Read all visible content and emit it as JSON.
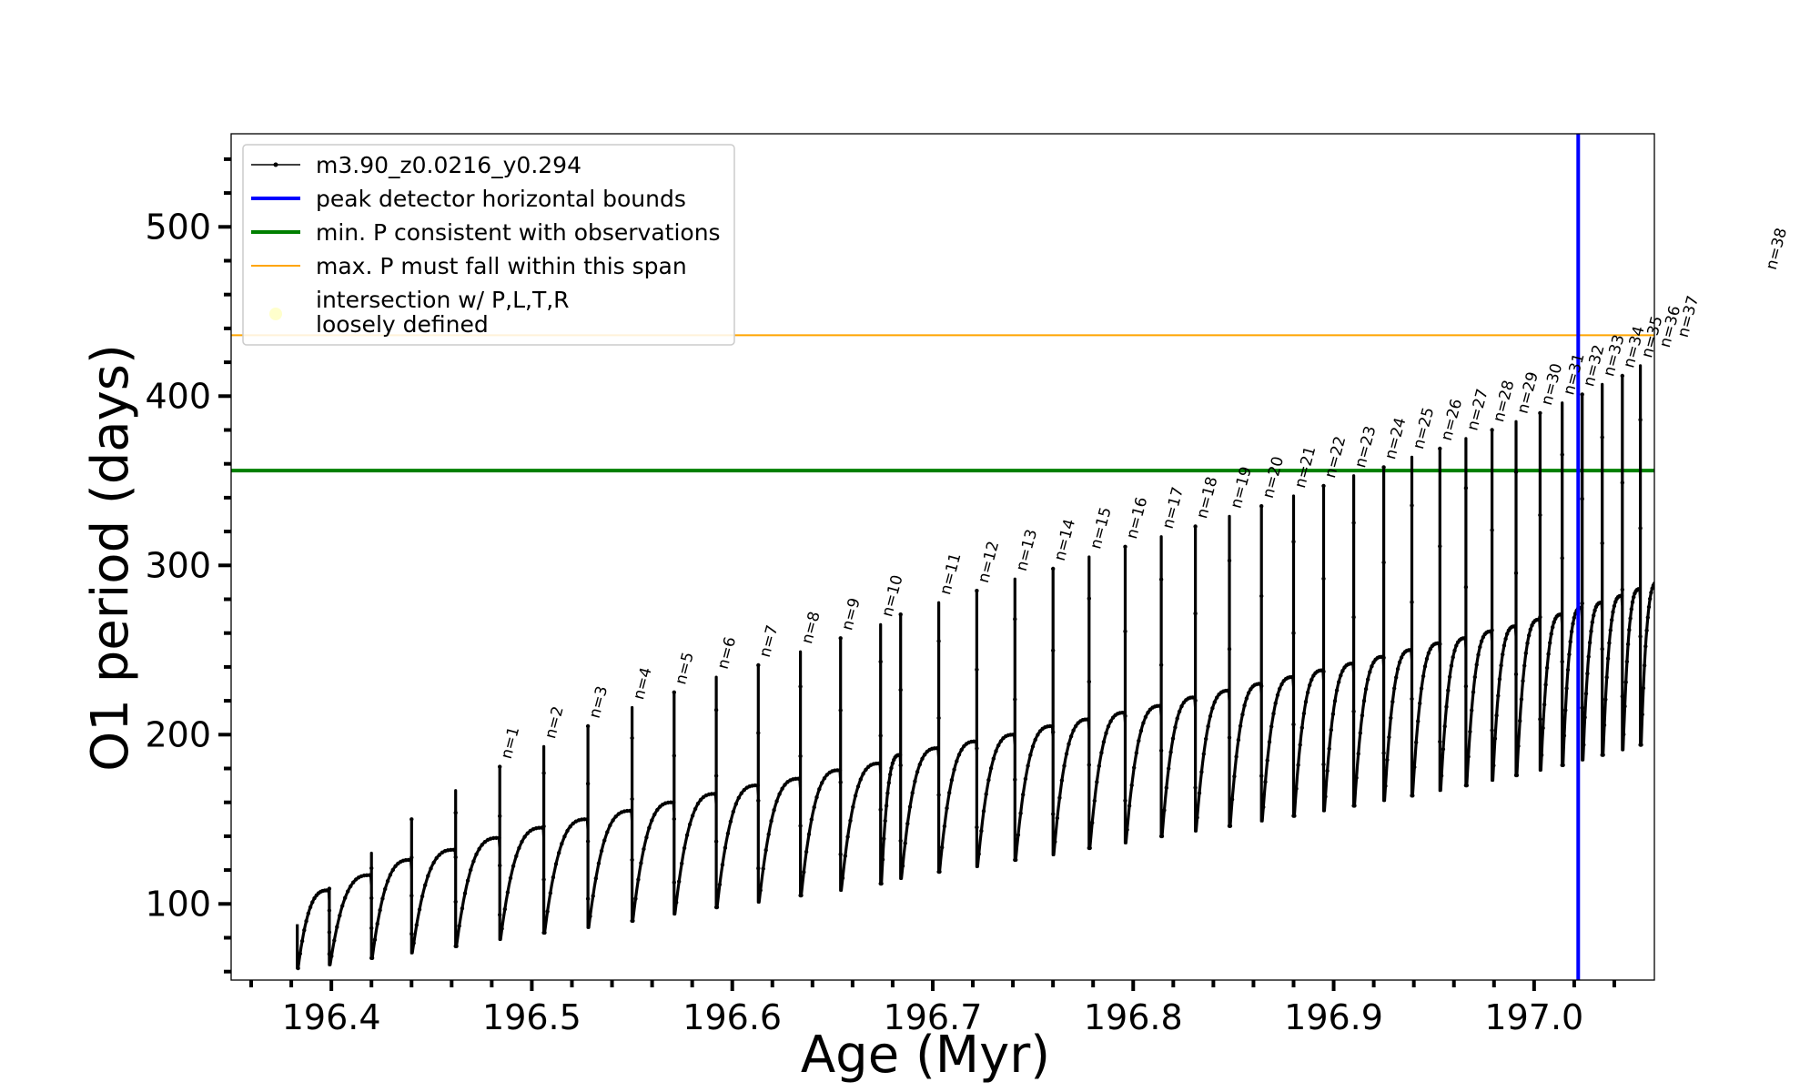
{
  "chart_data": {
    "type": "line",
    "xlabel": "Age (Myr)",
    "ylabel": "O1 period (days)",
    "xlim": [
      196.35,
      197.06
    ],
    "ylim": [
      55,
      555
    ],
    "xticks": [
      196.4,
      196.5,
      196.6,
      196.7,
      196.8,
      196.9,
      197.0
    ],
    "xtick_labels": [
      "196.4",
      "196.5",
      "196.6",
      "196.7",
      "196.8",
      "196.9",
      "197.0"
    ],
    "yticks": [
      100,
      200,
      300,
      400,
      500
    ],
    "ytick_labels": [
      "100",
      "200",
      "300",
      "400",
      "500"
    ],
    "grid": false,
    "legend_position": "top-left",
    "series": [
      {
        "name": "m3.90_z0.0216_y0.294",
        "color": "#000000",
        "style": "line-with-point-markers",
        "pulses": [
          {
            "age": 196.383,
            "min": 62,
            "max": 108,
            "spike": 88
          },
          {
            "age": 196.399,
            "min": 64,
            "max": 117,
            "spike": 109
          },
          {
            "age": 196.42,
            "min": 68,
            "max": 126,
            "spike": 130
          },
          {
            "age": 196.44,
            "min": 71,
            "max": 132,
            "spike": 150
          },
          {
            "age": 196.462,
            "min": 75,
            "max": 139,
            "spike": 167
          },
          {
            "age": 196.484,
            "min": 79,
            "max": 145,
            "spike": 181
          },
          {
            "age": 196.506,
            "min": 83,
            "max": 150,
            "spike": 193
          },
          {
            "age": 196.528,
            "min": 86,
            "max": 155,
            "spike": 205
          },
          {
            "age": 196.55,
            "min": 90,
            "max": 160,
            "spike": 216
          },
          {
            "age": 196.571,
            "min": 94,
            "max": 165,
            "spike": 225
          },
          {
            "age": 196.592,
            "min": 98,
            "max": 170,
            "spike": 234
          },
          {
            "age": 196.613,
            "min": 101,
            "max": 174,
            "spike": 241
          },
          {
            "age": 196.634,
            "min": 105,
            "max": 179,
            "spike": 249
          },
          {
            "age": 196.654,
            "min": 108,
            "max": 183,
            "spike": 257
          },
          {
            "age": 196.674,
            "min": 112,
            "max": 188,
            "spike": 265
          },
          {
            "age": 196.684,
            "min": 115,
            "max": 192,
            "spike": 271
          },
          {
            "age": 196.703,
            "min": 119,
            "max": 196,
            "spike": 278
          },
          {
            "age": 196.722,
            "min": 122,
            "max": 200,
            "spike": 285
          },
          {
            "age": 196.741,
            "min": 126,
            "max": 205,
            "spike": 292
          },
          {
            "age": 196.76,
            "min": 129,
            "max": 209,
            "spike": 298
          },
          {
            "age": 196.778,
            "min": 133,
            "max": 213,
            "spike": 305
          },
          {
            "age": 196.796,
            "min": 136,
            "max": 217,
            "spike": 311
          },
          {
            "age": 196.814,
            "min": 140,
            "max": 222,
            "spike": 317
          },
          {
            "age": 196.831,
            "min": 143,
            "max": 226,
            "spike": 323
          },
          {
            "age": 196.848,
            "min": 146,
            "max": 230,
            "spike": 329
          },
          {
            "age": 196.864,
            "min": 149,
            "max": 234,
            "spike": 335
          },
          {
            "age": 196.88,
            "min": 152,
            "max": 238,
            "spike": 341
          },
          {
            "age": 196.895,
            "min": 155,
            "max": 242,
            "spike": 347
          },
          {
            "age": 196.91,
            "min": 158,
            "max": 246,
            "spike": 353
          },
          {
            "age": 196.925,
            "min": 161,
            "max": 250,
            "spike": 358
          },
          {
            "age": 196.939,
            "min": 164,
            "max": 254,
            "spike": 364
          },
          {
            "age": 196.953,
            "min": 167,
            "max": 257,
            "spike": 369
          },
          {
            "age": 196.966,
            "min": 170,
            "max": 261,
            "spike": 375
          },
          {
            "age": 196.979,
            "min": 173,
            "max": 264,
            "spike": 380
          },
          {
            "age": 196.991,
            "min": 176,
            "max": 268,
            "spike": 385
          },
          {
            "age": 197.003,
            "min": 179,
            "max": 271,
            "spike": 390
          },
          {
            "age": 197.014,
            "min": 182,
            "max": 275,
            "spike": 396
          },
          {
            "age": 197.024,
            "min": 185,
            "max": 278,
            "spike": 401
          },
          {
            "age": 197.034,
            "min": 188,
            "max": 282,
            "spike": 407
          },
          {
            "age": 197.044,
            "min": 191,
            "max": 286,
            "spike": 412
          },
          {
            "age": 197.053,
            "min": 194,
            "max": 290,
            "spike": 418
          },
          {
            "age": 197.062,
            "min": 197,
            "max": 294,
            "spike": 424
          },
          {
            "age": 197.071,
            "min": 200,
            "max": 298,
            "spike": 430
          },
          {
            "age": 197.079,
            "min": 203,
            "max": 302,
            "spike": 436
          },
          {
            "age": 197.087,
            "min": 207,
            "max": 306,
            "spike": 442
          },
          {
            "age": 197.094,
            "min": 210,
            "max": 310,
            "spike": 448
          },
          {
            "age": 197.101,
            "min": 214,
            "max": 314,
            "spike": 455
          },
          {
            "age": 197.108,
            "min": 220,
            "max": 318,
            "spike": 462
          },
          {
            "age": 197.115,
            "min": 276,
            "max": 322,
            "spike": 470
          }
        ]
      },
      {
        "name": "peak detector horizontal bounds",
        "color": "#0000ff",
        "type": "vline",
        "x": 197.022
      },
      {
        "name": "min. P consistent with observations",
        "color": "#007f00",
        "type": "hline",
        "y": 356
      },
      {
        "name": "max. P must fall within this span",
        "color": "#ffa500",
        "type": "hline",
        "y": 436
      },
      {
        "name": "intersection w/ P,L,T,R\nloosely defined",
        "color": "#ffffcc",
        "type": "marker"
      }
    ],
    "pulse_labels": [
      {
        "text": "n=1",
        "age": 196.484,
        "y": 183
      },
      {
        "text": "n=2",
        "age": 196.506,
        "y": 195
      },
      {
        "text": "n=3",
        "age": 196.528,
        "y": 207
      },
      {
        "text": "n=4",
        "age": 196.55,
        "y": 218
      },
      {
        "text": "n=5",
        "age": 196.571,
        "y": 227
      },
      {
        "text": "n=6",
        "age": 196.592,
        "y": 236
      },
      {
        "text": "n=7",
        "age": 196.613,
        "y": 243
      },
      {
        "text": "n=8",
        "age": 196.634,
        "y": 251
      },
      {
        "text": "n=9",
        "age": 196.654,
        "y": 259
      },
      {
        "text": "n=10",
        "age": 196.674,
        "y": 267
      },
      {
        "text": "n=11",
        "age": 196.703,
        "y": 280
      },
      {
        "text": "n=12",
        "age": 196.722,
        "y": 287
      },
      {
        "text": "n=13",
        "age": 196.741,
        "y": 294
      },
      {
        "text": "n=14",
        "age": 196.76,
        "y": 300
      },
      {
        "text": "n=15",
        "age": 196.778,
        "y": 307
      },
      {
        "text": "n=16",
        "age": 196.796,
        "y": 313
      },
      {
        "text": "n=17",
        "age": 196.814,
        "y": 319
      },
      {
        "text": "n=18",
        "age": 196.831,
        "y": 325
      },
      {
        "text": "n=19",
        "age": 196.848,
        "y": 331
      },
      {
        "text": "n=20",
        "age": 196.864,
        "y": 337
      },
      {
        "text": "n=21",
        "age": 196.88,
        "y": 343
      },
      {
        "text": "n=22",
        "age": 196.895,
        "y": 349
      },
      {
        "text": "n=23",
        "age": 196.91,
        "y": 355
      },
      {
        "text": "n=24",
        "age": 196.925,
        "y": 360
      },
      {
        "text": "n=25",
        "age": 196.939,
        "y": 366
      },
      {
        "text": "n=26",
        "age": 196.953,
        "y": 371
      },
      {
        "text": "n=27",
        "age": 196.966,
        "y": 377
      },
      {
        "text": "n=28",
        "age": 196.979,
        "y": 382
      },
      {
        "text": "n=29",
        "age": 196.991,
        "y": 387
      },
      {
        "text": "n=30",
        "age": 197.003,
        "y": 392
      },
      {
        "text": "n=31",
        "age": 197.014,
        "y": 398
      },
      {
        "text": "n=32",
        "age": 197.024,
        "y": 403
      },
      {
        "text": "n=33",
        "age": 197.034,
        "y": 409
      },
      {
        "text": "n=34",
        "age": 197.044,
        "y": 414
      },
      {
        "text": "n=35",
        "age": 197.053,
        "y": 420
      },
      {
        "text": "n=36",
        "age": 197.062,
        "y": 426
      },
      {
        "text": "n=37",
        "age": 197.071,
        "y": 432
      },
      {
        "text": "n=38",
        "age": 197.115,
        "y": 472
      }
    ]
  }
}
